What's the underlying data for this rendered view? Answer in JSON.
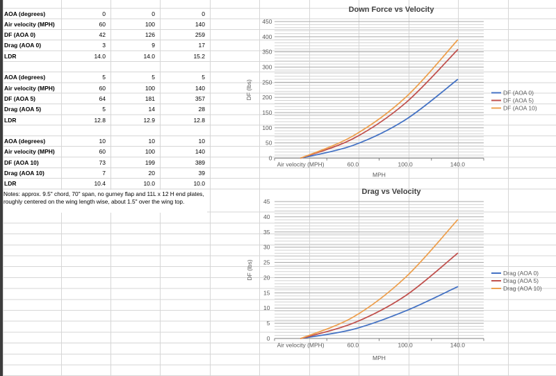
{
  "sheet": {
    "table_blocks": [
      {
        "rows": [
          {
            "label": "AOA (degrees)",
            "values": [
              "0",
              "0",
              "0"
            ]
          },
          {
            "label": "Air velocity (MPH)",
            "values": [
              "60",
              "100",
              "140"
            ]
          },
          {
            "label": "DF (AOA 0)",
            "values": [
              "42",
              "126",
              "259"
            ]
          },
          {
            "label": "Drag (AOA 0)",
            "values": [
              "3",
              "9",
              "17"
            ]
          },
          {
            "label": "LDR",
            "values": [
              "14.0",
              "14.0",
              "15.2"
            ]
          }
        ]
      },
      {
        "rows": [
          {
            "label": "AOA (degrees)",
            "values": [
              "5",
              "5",
              "5"
            ]
          },
          {
            "label": "Air velocity (MPH)",
            "values": [
              "60",
              "100",
              "140"
            ]
          },
          {
            "label": "DF (AOA 5)",
            "values": [
              "64",
              "181",
              "357"
            ]
          },
          {
            "label": "Drag (AOA 5)",
            "values": [
              "5",
              "14",
              "28"
            ]
          },
          {
            "label": "LDR",
            "values": [
              "12.8",
              "12.9",
              "12.8"
            ]
          }
        ]
      },
      {
        "rows": [
          {
            "label": "AOA (degrees)",
            "values": [
              "10",
              "10",
              "10"
            ]
          },
          {
            "label": "Air velocity (MPH)",
            "values": [
              "60",
              "100",
              "140"
            ]
          },
          {
            "label": "DF (AOA 10)",
            "values": [
              "73",
              "199",
              "389"
            ]
          },
          {
            "label": "Drag (AOA 10)",
            "values": [
              "7",
              "20",
              "39"
            ]
          },
          {
            "label": "LDR",
            "values": [
              "10.4",
              "10.0",
              "10.0"
            ]
          }
        ]
      }
    ],
    "notes": "Notes: approx. 9.5\" chord, 70\" span, no gurney flap and 11L x 12 H end plates, roughly centered on the wing length wise, about 1.5\" over the wing top."
  },
  "chart_data": [
    {
      "type": "line",
      "title": "Down Force vs Velocity",
      "categories": [
        "Air velocity (MPH)",
        "60.0",
        "100.0",
        "140.0"
      ],
      "series": [
        {
          "name": "DF (AOA 0)",
          "color": "#4472C4",
          "values": [
            0,
            42,
            126,
            259
          ]
        },
        {
          "name": "DF (AOA 5)",
          "color": "#C0504D",
          "values": [
            0,
            64,
            181,
            357
          ]
        },
        {
          "name": "DF (AOA 10)",
          "color": "#EDA04F",
          "values": [
            0,
            73,
            199,
            389
          ]
        }
      ],
      "xlabel": "MPH",
      "ylabel": "DF (lbs)",
      "ylim": [
        0,
        450
      ],
      "ymajor": 50,
      "yminor": 10,
      "legend_position": "right",
      "grid": "horizontal-minor-and-major",
      "smooth_lines": true
    },
    {
      "type": "line",
      "title": "Drag vs Velocity",
      "categories": [
        "Air velocity (MPH)",
        "60.0",
        "100.0",
        "140.0"
      ],
      "series": [
        {
          "name": "Drag (AOA 0)",
          "color": "#4472C4",
          "values": [
            0,
            3,
            9,
            17
          ]
        },
        {
          "name": "Drag (AOA 5)",
          "color": "#C0504D",
          "values": [
            0,
            5,
            14,
            28
          ]
        },
        {
          "name": "Drag (AOA 10)",
          "color": "#EDA04F",
          "values": [
            0,
            7,
            20,
            39
          ]
        }
      ],
      "xlabel": "MPH",
      "ylabel": "DF (lbs)",
      "ylim": [
        0,
        45
      ],
      "ymajor": 5,
      "yminor": 1,
      "legend_position": "right",
      "grid": "horizontal-minor-and-major",
      "smooth_lines": true
    }
  ],
  "colors": {
    "grid_line": "#d6d6d6",
    "chart_minor_grid": "#d2d2d2",
    "chart_major_grid": "#a8a8a8",
    "axis": "#7f7f7f",
    "tick_text": "#595959",
    "title_text": "#3f3f3f"
  }
}
